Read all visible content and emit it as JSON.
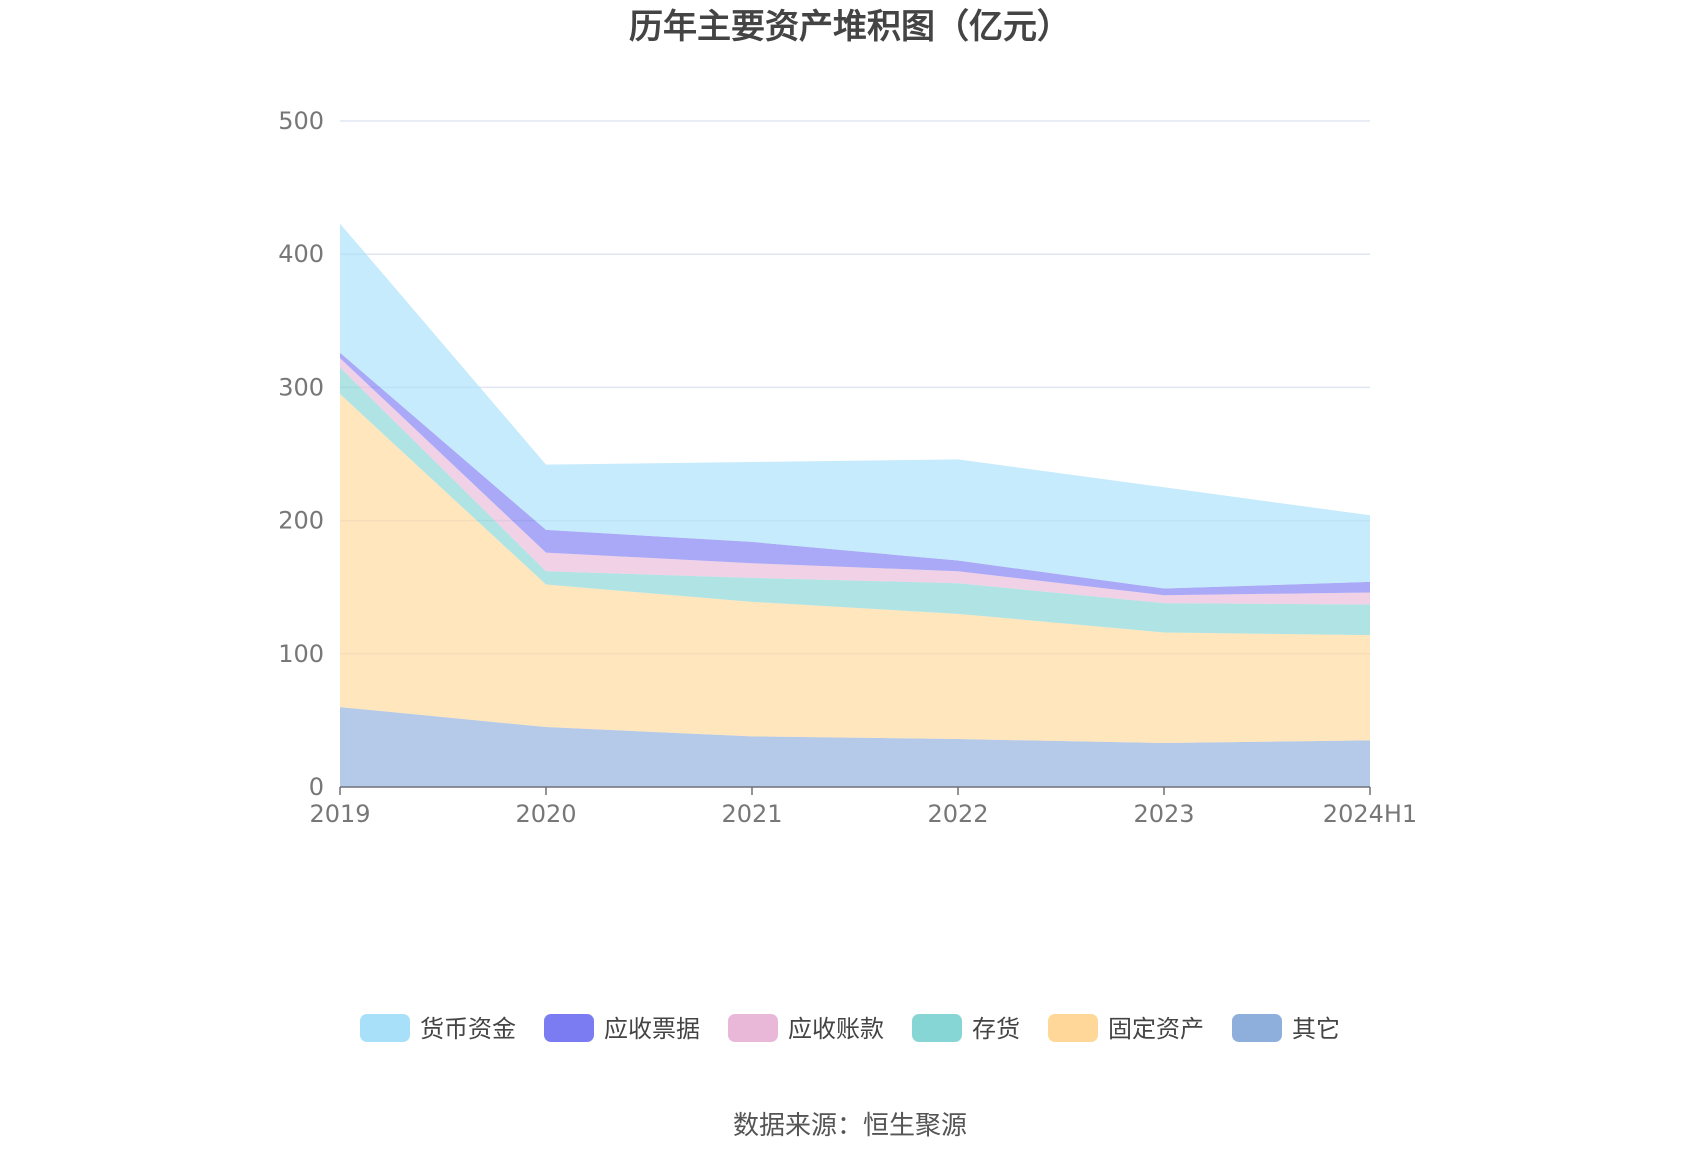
{
  "chart_data": {
    "type": "area",
    "stacked": true,
    "title": "历年主要资产堆积图（亿元）",
    "xlabel": "",
    "ylabel": "",
    "categories": [
      "2019",
      "2020",
      "2021",
      "2022",
      "2023",
      "2024H1"
    ],
    "ylim": [
      0,
      500
    ],
    "yticks": [
      0,
      100,
      200,
      300,
      400,
      500
    ],
    "grid": true,
    "legend_position": "bottom",
    "series": [
      {
        "name": "其它",
        "color": "#8EAEDB",
        "values": [
          60,
          45,
          38,
          36,
          33,
          35
        ]
      },
      {
        "name": "固定资产",
        "color": "#FFD899",
        "values": [
          235,
          107,
          101,
          94,
          83,
          79
        ]
      },
      {
        "name": "存货",
        "color": "#86D6D6",
        "values": [
          20,
          10,
          18,
          23,
          22,
          23
        ]
      },
      {
        "name": "应收账款",
        "color": "#E9B8D9",
        "values": [
          7,
          14,
          11,
          9,
          6,
          9
        ]
      },
      {
        "name": "应收票据",
        "color": "#7B7BF2",
        "values": [
          4,
          17,
          16,
          8,
          5,
          8
        ]
      },
      {
        "name": "货币资金",
        "color": "#A8E0FA",
        "values": [
          97,
          49,
          60,
          76,
          76,
          50
        ]
      }
    ],
    "legend_order": [
      "货币资金",
      "应收票据",
      "应收账款",
      "存货",
      "固定资产",
      "其它"
    ],
    "source": "数据来源：恒生聚源"
  }
}
